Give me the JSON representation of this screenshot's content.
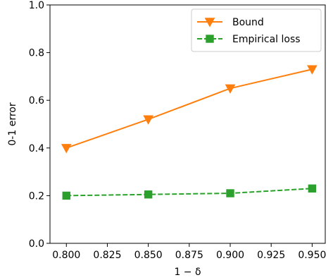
{
  "chart_data": {
    "type": "line",
    "xlabel": "1 − δ",
    "ylabel": "0-1 error",
    "xlim": [
      0.79,
      0.958
    ],
    "ylim": [
      0.0,
      1.0
    ],
    "x_ticks": [
      "0.800",
      "0.825",
      "0.850",
      "0.875",
      "0.900",
      "0.925",
      "0.950"
    ],
    "x_tick_values": [
      0.8,
      0.825,
      0.85,
      0.875,
      0.9,
      0.925,
      0.95
    ],
    "y_ticks": [
      "0.0",
      "0.2",
      "0.4",
      "0.6",
      "0.8",
      "1.0"
    ],
    "y_tick_values": [
      0.0,
      0.2,
      0.4,
      0.6,
      0.8,
      1.0
    ],
    "grid": false,
    "legend_position": "top-right",
    "x": [
      0.8,
      0.85,
      0.9,
      0.95
    ],
    "series": [
      {
        "name": "Bound",
        "values": [
          0.4,
          0.52,
          0.65,
          0.73
        ],
        "color": "#ff7f0e",
        "marker": "triangle-down",
        "linestyle": "solid"
      },
      {
        "name": "Empirical loss",
        "values": [
          0.2,
          0.205,
          0.21,
          0.23
        ],
        "color": "#2ca02c",
        "marker": "square",
        "linestyle": "dashed"
      }
    ]
  }
}
